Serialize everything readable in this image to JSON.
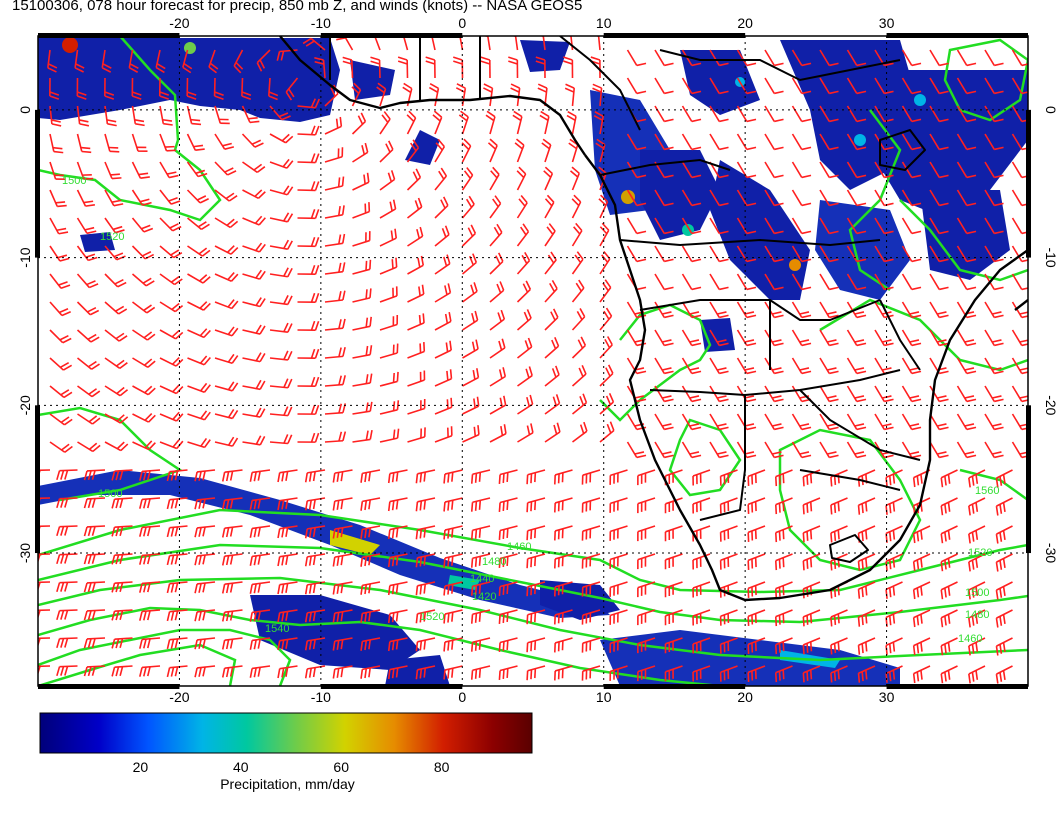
{
  "title": "15100306, 078 hour forecast for precip, 850 mb Z, and winds (knots) -- NASA GEOS5",
  "axes": {
    "lon_ticks": [
      "-20",
      "-10",
      "0",
      "10",
      "20",
      "30"
    ],
    "lat_ticks": [
      "0",
      "-10",
      "-20",
      "-30"
    ],
    "lon_range": [
      -30,
      40
    ],
    "lat_range": [
      -39,
      5
    ]
  },
  "contours": {
    "color": "#22dd22",
    "levels": [
      "1500",
      "1520",
      "1500",
      "1480",
      "1460",
      "1440",
      "1420",
      "1520",
      "1540",
      "1520",
      "1500",
      "1480",
      "1460",
      "1560"
    ]
  },
  "colorbar": {
    "label": "Precipitation, mm/day",
    "ticks": [
      "20",
      "40",
      "60",
      "80"
    ],
    "colors": [
      "#00007a",
      "#0000c8",
      "#0055ff",
      "#00b4e6",
      "#00c8a0",
      "#6ecc4a",
      "#d2d200",
      "#e68c00",
      "#d21e00",
      "#8c0000",
      "#5a0000"
    ]
  },
  "wind_barbs": {
    "color": "#ff2020"
  },
  "colors": {
    "coast": "#000000",
    "grid": "#000000",
    "frame": "#000000"
  }
}
